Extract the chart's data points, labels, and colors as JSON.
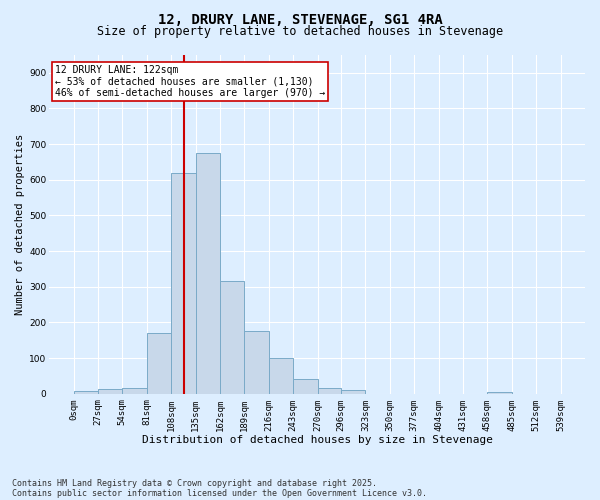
{
  "title1": "12, DRURY LANE, STEVENAGE, SG1 4RA",
  "title2": "Size of property relative to detached houses in Stevenage",
  "xlabel": "Distribution of detached houses by size in Stevenage",
  "ylabel": "Number of detached properties",
  "bin_edges": [
    0,
    27,
    54,
    81,
    108,
    135,
    162,
    189,
    216,
    243,
    270,
    296,
    323,
    350,
    377,
    404,
    431,
    458,
    485,
    512,
    539
  ],
  "bar_heights": [
    8,
    12,
    15,
    170,
    620,
    675,
    315,
    175,
    100,
    40,
    15,
    10,
    0,
    0,
    0,
    0,
    0,
    5,
    0,
    0
  ],
  "bar_color": "#c8d8ea",
  "bar_edgecolor": "#7aaac8",
  "vline_x": 122,
  "vline_color": "#cc0000",
  "ylim": [
    0,
    950
  ],
  "yticks": [
    0,
    100,
    200,
    300,
    400,
    500,
    600,
    700,
    800,
    900
  ],
  "background_color": "#ddeeff",
  "plot_bg_color": "#ddeeff",
  "grid_color": "#ffffff",
  "annotation_text": "12 DRURY LANE: 122sqm\n← 53% of detached houses are smaller (1,130)\n46% of semi-detached houses are larger (970) →",
  "annotation_box_facecolor": "#ffffff",
  "annotation_box_edgecolor": "#cc0000",
  "footer1": "Contains HM Land Registry data © Crown copyright and database right 2025.",
  "footer2": "Contains public sector information licensed under the Open Government Licence v3.0.",
  "title1_fontsize": 10,
  "title2_fontsize": 8.5,
  "xlabel_fontsize": 8,
  "ylabel_fontsize": 7.5,
  "tick_fontsize": 6.5,
  "annotation_fontsize": 7,
  "footer_fontsize": 6
}
